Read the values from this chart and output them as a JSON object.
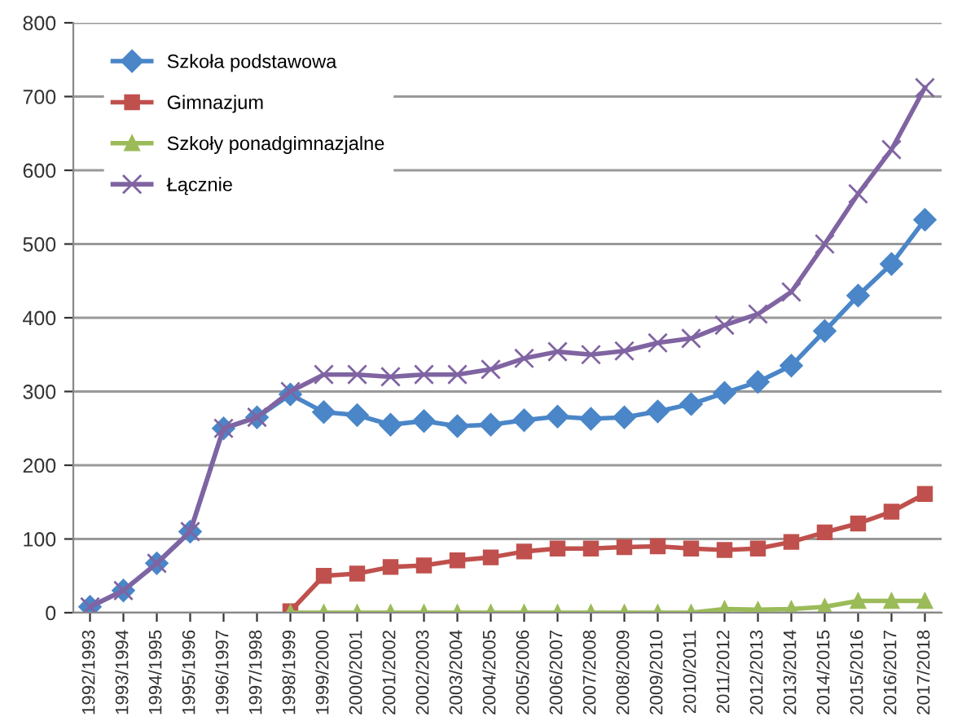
{
  "chart_data": {
    "type": "line",
    "categories": [
      "1992/1993",
      "1993/1994",
      "1994/1995",
      "1995/1996",
      "1996/1997",
      "1997/1998",
      "1998/1999",
      "1999/2000",
      "2000/2001",
      "2001/2002",
      "2002/2003",
      "2003/2004",
      "2004/2005",
      "2005/2006",
      "2006/2007",
      "2007/2008",
      "2008/2009",
      "2009/2010",
      "2010/2011",
      "2011/2012",
      "2012/2013",
      "2013/2014",
      "2014/2015",
      "2015/2016",
      "2016/2017",
      "2017/2018"
    ],
    "series": [
      {
        "name": "Szkoła podstawowa",
        "color": "#4a86c8",
        "marker": "diamond",
        "values": [
          8,
          30,
          67,
          110,
          250,
          265,
          296,
          272,
          268,
          255,
          260,
          253,
          255,
          261,
          266,
          263,
          265,
          273,
          283,
          298,
          313,
          335,
          382,
          430,
          473,
          533
        ]
      },
      {
        "name": "Gimnazjum",
        "color": "#c0504d",
        "marker": "square",
        "values": [
          null,
          null,
          null,
          null,
          null,
          null,
          2,
          50,
          53,
          62,
          64,
          71,
          75,
          83,
          87,
          87,
          89,
          90,
          87,
          85,
          87,
          96,
          109,
          121,
          137,
          161
        ]
      },
      {
        "name": "Szkoły ponadgimnazjalne",
        "color": "#9bbb59",
        "marker": "triangle",
        "values": [
          null,
          null,
          null,
          null,
          null,
          null,
          0,
          0,
          0,
          0,
          0,
          0,
          0,
          0,
          0,
          0,
          0,
          0,
          0,
          5,
          4,
          5,
          8,
          16,
          16,
          16
        ]
      },
      {
        "name": "Łącznie",
        "color": "#8064a2",
        "marker": "cross",
        "values": [
          8,
          30,
          67,
          110,
          250,
          265,
          300,
          323,
          323,
          320,
          323,
          323,
          330,
          345,
          354,
          350,
          355,
          366,
          372,
          390,
          405,
          435,
          500,
          568,
          628,
          712
        ]
      }
    ],
    "ylim": [
      0,
      800
    ],
    "yticks": [
      0,
      100,
      200,
      300,
      400,
      500,
      600,
      700,
      800
    ],
    "grid": "y",
    "legend": "top left",
    "line_style": "solid"
  }
}
